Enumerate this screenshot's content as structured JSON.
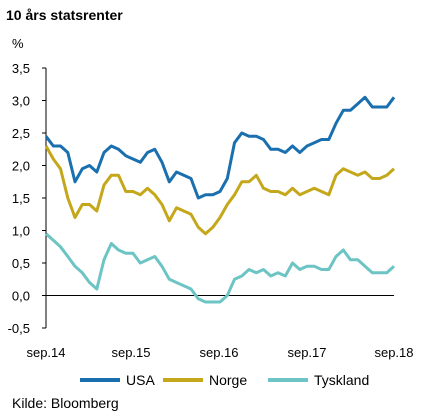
{
  "chart_data": {
    "type": "line",
    "title": "10 års statsrenter",
    "ylabel": "%",
    "ylim": [
      -0.5,
      3.5
    ],
    "yticks": [
      "3,5",
      "3,0",
      "2,5",
      "2,0",
      "1,5",
      "1,0",
      "0,5",
      "0,0",
      "-0,5"
    ],
    "xticks": [
      "sep.14",
      "sep.15",
      "sep.16",
      "sep.17",
      "sep.18"
    ],
    "grid": false,
    "legend": "bottom",
    "x": [
      "sep.14",
      "okt.14",
      "nov.14",
      "des.14",
      "jan.15",
      "feb.15",
      "mar.15",
      "apr.15",
      "mai.15",
      "jun.15",
      "jul.15",
      "aug.15",
      "sep.15",
      "okt.15",
      "nov.15",
      "des.15",
      "jan.16",
      "feb.16",
      "mar.16",
      "apr.16",
      "mai.16",
      "jun.16",
      "jul.16",
      "aug.16",
      "sep.16",
      "okt.16",
      "nov.16",
      "des.16",
      "jan.17",
      "feb.17",
      "mar.17",
      "apr.17",
      "mai.17",
      "jun.17",
      "jul.17",
      "aug.17",
      "sep.17",
      "okt.17",
      "nov.17",
      "des.17",
      "jan.18",
      "feb.18",
      "mar.18",
      "apr.18",
      "mai.18",
      "jun.18",
      "jul.18",
      "aug.18",
      "sep.18"
    ],
    "series": [
      {
        "name": "USA",
        "color": "#1a6faf",
        "values": [
          2.45,
          2.3,
          2.3,
          2.2,
          1.75,
          1.95,
          2.0,
          1.9,
          2.2,
          2.3,
          2.25,
          2.15,
          2.1,
          2.05,
          2.2,
          2.25,
          2.05,
          1.75,
          1.9,
          1.85,
          1.8,
          1.5,
          1.55,
          1.55,
          1.6,
          1.8,
          2.35,
          2.5,
          2.45,
          2.45,
          2.4,
          2.25,
          2.25,
          2.2,
          2.3,
          2.2,
          2.3,
          2.35,
          2.4,
          2.4,
          2.65,
          2.85,
          2.85,
          2.95,
          3.05,
          2.9,
          2.9,
          2.9,
          3.05
        ]
      },
      {
        "name": "Norge",
        "color": "#c4a71a",
        "values": [
          2.3,
          2.1,
          1.95,
          1.5,
          1.2,
          1.4,
          1.4,
          1.3,
          1.7,
          1.85,
          1.85,
          1.6,
          1.6,
          1.55,
          1.65,
          1.55,
          1.4,
          1.15,
          1.35,
          1.3,
          1.25,
          1.05,
          0.95,
          1.05,
          1.2,
          1.4,
          1.55,
          1.75,
          1.75,
          1.85,
          1.65,
          1.6,
          1.6,
          1.55,
          1.65,
          1.55,
          1.6,
          1.65,
          1.6,
          1.55,
          1.85,
          1.95,
          1.9,
          1.85,
          1.9,
          1.8,
          1.8,
          1.85,
          1.95
        ]
      },
      {
        "name": "Tyskland",
        "color": "#6cc4c4",
        "values": [
          0.95,
          0.85,
          0.75,
          0.6,
          0.45,
          0.35,
          0.2,
          0.1,
          0.55,
          0.8,
          0.7,
          0.65,
          0.65,
          0.5,
          0.55,
          0.6,
          0.45,
          0.25,
          0.2,
          0.15,
          0.1,
          -0.05,
          -0.1,
          -0.1,
          -0.1,
          0.0,
          0.25,
          0.3,
          0.4,
          0.35,
          0.4,
          0.3,
          0.35,
          0.3,
          0.5,
          0.4,
          0.45,
          0.45,
          0.4,
          0.4,
          0.6,
          0.7,
          0.55,
          0.55,
          0.45,
          0.35,
          0.35,
          0.35,
          0.45
        ]
      }
    ]
  },
  "source": "Kilde: Bloomberg"
}
